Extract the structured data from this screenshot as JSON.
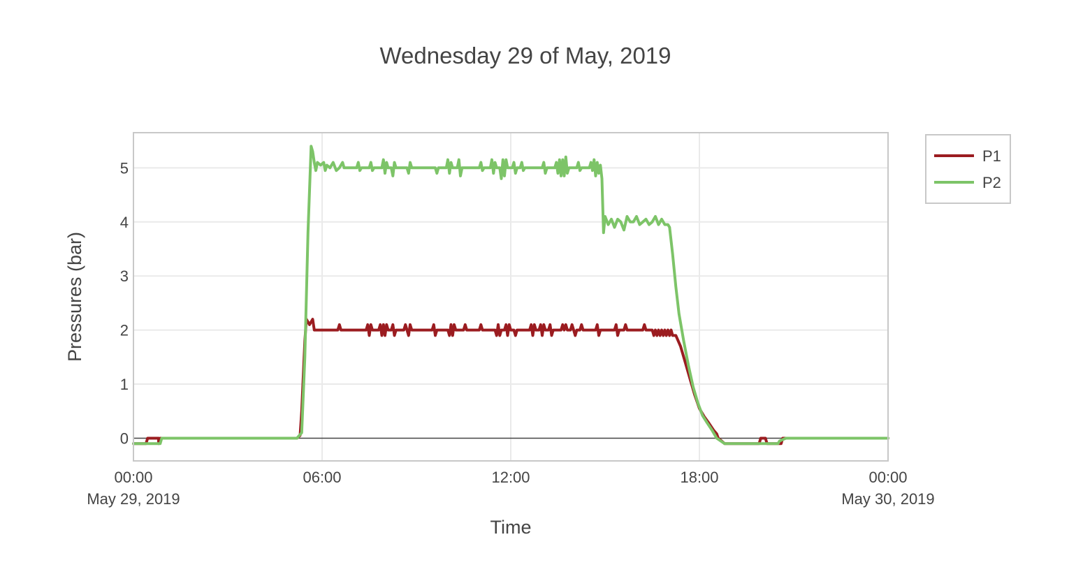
{
  "chart_data": {
    "type": "line",
    "title": "Wednesday 29 of May, 2019",
    "xlabel": "Time",
    "ylabel": "Pressures (bar)",
    "x_range_hours": [
      0,
      24
    ],
    "ylim": [
      -0.42,
      5.65
    ],
    "grid": true,
    "legend_position": "top-right",
    "x_ticks": [
      {
        "hour": 0,
        "line1": "00:00",
        "line2": "May 29, 2019"
      },
      {
        "hour": 6,
        "line1": "06:00",
        "line2": ""
      },
      {
        "hour": 12,
        "line1": "12:00",
        "line2": ""
      },
      {
        "hour": 18,
        "line1": "18:00",
        "line2": ""
      },
      {
        "hour": 24,
        "line1": "00:00",
        "line2": "May 30, 2019"
      }
    ],
    "y_ticks": [
      0,
      1,
      2,
      3,
      4,
      5
    ],
    "series": [
      {
        "name": "P1",
        "color": "#9b1c20",
        "points": [
          [
            0.0,
            -0.1
          ],
          [
            0.4,
            -0.1
          ],
          [
            0.45,
            0.0
          ],
          [
            0.8,
            0.0
          ],
          [
            0.8,
            -0.1
          ],
          [
            0.85,
            0.0
          ],
          [
            5.2,
            0.0
          ],
          [
            5.3,
            0.05
          ],
          [
            5.35,
            0.5
          ],
          [
            5.45,
            1.8
          ],
          [
            5.5,
            2.2
          ],
          [
            5.6,
            2.1
          ],
          [
            5.7,
            2.2
          ],
          [
            5.75,
            2.0
          ],
          [
            6.5,
            2.0
          ],
          [
            6.55,
            2.1
          ],
          [
            6.6,
            2.0
          ],
          [
            7.4,
            2.0
          ],
          [
            7.45,
            2.1
          ],
          [
            7.5,
            1.9
          ],
          [
            7.55,
            2.1
          ],
          [
            7.6,
            2.0
          ],
          [
            7.8,
            2.0
          ],
          [
            7.85,
            2.1
          ],
          [
            7.9,
            1.9
          ],
          [
            7.95,
            2.1
          ],
          [
            8.0,
            1.9
          ],
          [
            8.05,
            2.1
          ],
          [
            8.1,
            2.0
          ],
          [
            8.2,
            2.0
          ],
          [
            8.25,
            2.1
          ],
          [
            8.3,
            1.9
          ],
          [
            8.35,
            2.0
          ],
          [
            8.6,
            2.0
          ],
          [
            8.65,
            2.1
          ],
          [
            8.7,
            2.0
          ],
          [
            8.75,
            1.9
          ],
          [
            8.8,
            2.1
          ],
          [
            8.85,
            2.0
          ],
          [
            9.5,
            2.0
          ],
          [
            9.55,
            2.1
          ],
          [
            9.6,
            1.9
          ],
          [
            9.65,
            2.0
          ],
          [
            10.0,
            2.0
          ],
          [
            10.05,
            1.9
          ],
          [
            10.1,
            2.1
          ],
          [
            10.15,
            1.9
          ],
          [
            10.2,
            2.1
          ],
          [
            10.25,
            2.0
          ],
          [
            10.5,
            2.0
          ],
          [
            10.55,
            2.1
          ],
          [
            10.6,
            2.0
          ],
          [
            11.0,
            2.0
          ],
          [
            11.05,
            2.1
          ],
          [
            11.1,
            2.0
          ],
          [
            11.5,
            2.0
          ],
          [
            11.55,
            1.9
          ],
          [
            11.6,
            2.1
          ],
          [
            11.65,
            1.9
          ],
          [
            11.7,
            2.0
          ],
          [
            11.8,
            2.0
          ],
          [
            11.85,
            2.1
          ],
          [
            11.9,
            1.9
          ],
          [
            11.95,
            2.1
          ],
          [
            12.0,
            2.0
          ],
          [
            12.1,
            2.0
          ],
          [
            12.15,
            1.9
          ],
          [
            12.2,
            2.0
          ],
          [
            12.6,
            2.0
          ],
          [
            12.65,
            2.1
          ],
          [
            12.7,
            1.9
          ],
          [
            12.75,
            2.1
          ],
          [
            12.8,
            2.0
          ],
          [
            12.9,
            2.0
          ],
          [
            12.95,
            2.1
          ],
          [
            13.0,
            1.9
          ],
          [
            13.05,
            2.1
          ],
          [
            13.1,
            2.0
          ],
          [
            13.2,
            2.0
          ],
          [
            13.25,
            2.1
          ],
          [
            13.3,
            1.9
          ],
          [
            13.35,
            2.0
          ],
          [
            13.6,
            2.0
          ],
          [
            13.65,
            2.1
          ],
          [
            13.7,
            2.0
          ],
          [
            13.75,
            2.1
          ],
          [
            13.8,
            2.0
          ],
          [
            13.9,
            2.0
          ],
          [
            13.95,
            2.1
          ],
          [
            14.0,
            2.0
          ],
          [
            14.05,
            1.9
          ],
          [
            14.1,
            2.0
          ],
          [
            14.2,
            2.0
          ],
          [
            14.25,
            2.1
          ],
          [
            14.3,
            2.0
          ],
          [
            14.7,
            2.0
          ],
          [
            14.75,
            2.1
          ],
          [
            14.8,
            1.9
          ],
          [
            14.85,
            2.0
          ],
          [
            15.3,
            2.0
          ],
          [
            15.35,
            2.1
          ],
          [
            15.4,
            1.9
          ],
          [
            15.45,
            2.0
          ],
          [
            15.6,
            2.0
          ],
          [
            15.65,
            2.1
          ],
          [
            15.7,
            2.0
          ],
          [
            16.2,
            2.0
          ],
          [
            16.25,
            2.1
          ],
          [
            16.3,
            2.0
          ],
          [
            16.5,
            2.0
          ],
          [
            16.55,
            1.9
          ],
          [
            16.6,
            2.0
          ],
          [
            16.65,
            1.9
          ],
          [
            16.7,
            2.0
          ],
          [
            16.75,
            1.9
          ],
          [
            16.8,
            2.0
          ],
          [
            16.85,
            1.9
          ],
          [
            16.9,
            2.0
          ],
          [
            16.95,
            1.9
          ],
          [
            17.0,
            2.0
          ],
          [
            17.05,
            1.9
          ],
          [
            17.1,
            2.0
          ],
          [
            17.15,
            1.9
          ],
          [
            17.25,
            1.9
          ],
          [
            17.4,
            1.7
          ],
          [
            17.55,
            1.4
          ],
          [
            17.7,
            1.1
          ],
          [
            17.85,
            0.8
          ],
          [
            18.0,
            0.55
          ],
          [
            18.15,
            0.4
          ],
          [
            18.3,
            0.28
          ],
          [
            18.45,
            0.15
          ],
          [
            18.55,
            0.08
          ],
          [
            18.6,
            0.0
          ],
          [
            18.8,
            -0.1
          ],
          [
            19.9,
            -0.1
          ],
          [
            19.95,
            0.0
          ],
          [
            20.1,
            0.0
          ],
          [
            20.15,
            -0.1
          ],
          [
            20.6,
            -0.1
          ],
          [
            20.65,
            0.0
          ],
          [
            24.0,
            0.0
          ]
        ]
      },
      {
        "name": "P2",
        "color": "#7dc468",
        "points": [
          [
            0.0,
            -0.1
          ],
          [
            0.85,
            -0.1
          ],
          [
            0.9,
            0.0
          ],
          [
            5.2,
            0.0
          ],
          [
            5.35,
            0.1
          ],
          [
            5.45,
            1.5
          ],
          [
            5.55,
            3.8
          ],
          [
            5.65,
            5.4
          ],
          [
            5.7,
            5.3
          ],
          [
            5.75,
            5.1
          ],
          [
            5.8,
            4.95
          ],
          [
            5.85,
            5.1
          ],
          [
            5.95,
            5.05
          ],
          [
            6.05,
            5.1
          ],
          [
            6.1,
            4.95
          ],
          [
            6.15,
            5.05
          ],
          [
            6.25,
            5.0
          ],
          [
            6.35,
            5.1
          ],
          [
            6.45,
            4.95
          ],
          [
            6.55,
            5.0
          ],
          [
            6.65,
            5.1
          ],
          [
            6.7,
            5.0
          ],
          [
            7.1,
            5.0
          ],
          [
            7.15,
            5.1
          ],
          [
            7.2,
            4.95
          ],
          [
            7.25,
            5.0
          ],
          [
            7.5,
            5.0
          ],
          [
            7.55,
            5.1
          ],
          [
            7.6,
            4.95
          ],
          [
            7.65,
            5.0
          ],
          [
            7.9,
            5.0
          ],
          [
            7.95,
            5.15
          ],
          [
            8.0,
            4.9
          ],
          [
            8.05,
            5.1
          ],
          [
            8.1,
            5.0
          ],
          [
            8.2,
            5.0
          ],
          [
            8.25,
            4.85
          ],
          [
            8.3,
            5.1
          ],
          [
            8.35,
            5.0
          ],
          [
            8.7,
            5.0
          ],
          [
            8.75,
            4.9
          ],
          [
            8.8,
            5.1
          ],
          [
            8.85,
            5.0
          ],
          [
            9.6,
            5.0
          ],
          [
            9.65,
            4.9
          ],
          [
            9.7,
            5.0
          ],
          [
            9.95,
            5.0
          ],
          [
            10.0,
            5.15
          ],
          [
            10.05,
            4.9
          ],
          [
            10.1,
            5.1
          ],
          [
            10.15,
            5.0
          ],
          [
            10.3,
            5.0
          ],
          [
            10.35,
            5.15
          ],
          [
            10.4,
            4.85
          ],
          [
            10.45,
            5.0
          ],
          [
            11.0,
            5.0
          ],
          [
            11.05,
            5.1
          ],
          [
            11.1,
            4.95
          ],
          [
            11.15,
            5.0
          ],
          [
            11.35,
            5.0
          ],
          [
            11.4,
            5.15
          ],
          [
            11.45,
            4.9
          ],
          [
            11.5,
            5.1
          ],
          [
            11.55,
            5.0
          ],
          [
            11.65,
            5.0
          ],
          [
            11.7,
            4.8
          ],
          [
            11.75,
            5.15
          ],
          [
            11.8,
            4.85
          ],
          [
            11.85,
            5.15
          ],
          [
            11.9,
            5.0
          ],
          [
            12.05,
            5.0
          ],
          [
            12.1,
            5.1
          ],
          [
            12.15,
            4.9
          ],
          [
            12.2,
            5.0
          ],
          [
            12.3,
            5.0
          ],
          [
            12.35,
            5.1
          ],
          [
            12.4,
            4.95
          ],
          [
            12.45,
            5.0
          ],
          [
            13.0,
            5.0
          ],
          [
            13.05,
            5.1
          ],
          [
            13.1,
            4.9
          ],
          [
            13.15,
            5.0
          ],
          [
            13.4,
            5.0
          ],
          [
            13.45,
            5.1
          ],
          [
            13.5,
            4.9
          ],
          [
            13.55,
            5.15
          ],
          [
            13.6,
            4.85
          ],
          [
            13.65,
            5.15
          ],
          [
            13.7,
            4.85
          ],
          [
            13.75,
            5.2
          ],
          [
            13.8,
            4.9
          ],
          [
            13.85,
            5.0
          ],
          [
            14.1,
            5.0
          ],
          [
            14.15,
            5.1
          ],
          [
            14.2,
            4.95
          ],
          [
            14.25,
            5.0
          ],
          [
            14.5,
            5.0
          ],
          [
            14.55,
            5.1
          ],
          [
            14.6,
            4.95
          ],
          [
            14.65,
            5.15
          ],
          [
            14.7,
            4.85
          ],
          [
            14.75,
            5.1
          ],
          [
            14.8,
            4.9
          ],
          [
            14.85,
            5.05
          ],
          [
            14.9,
            4.8
          ],
          [
            14.95,
            3.8
          ],
          [
            15.0,
            4.1
          ],
          [
            15.1,
            3.95
          ],
          [
            15.2,
            4.05
          ],
          [
            15.3,
            3.9
          ],
          [
            15.4,
            4.05
          ],
          [
            15.5,
            4.0
          ],
          [
            15.6,
            3.85
          ],
          [
            15.7,
            4.1
          ],
          [
            15.8,
            4.0
          ],
          [
            15.9,
            4.0
          ],
          [
            16.0,
            4.1
          ],
          [
            16.1,
            3.95
          ],
          [
            16.2,
            4.0
          ],
          [
            16.3,
            4.05
          ],
          [
            16.4,
            3.95
          ],
          [
            16.5,
            4.0
          ],
          [
            16.6,
            4.1
          ],
          [
            16.7,
            3.95
          ],
          [
            16.8,
            4.05
          ],
          [
            16.9,
            3.95
          ],
          [
            17.0,
            3.95
          ],
          [
            17.05,
            3.9
          ],
          [
            17.15,
            3.4
          ],
          [
            17.25,
            2.8
          ],
          [
            17.35,
            2.3
          ],
          [
            17.5,
            1.8
          ],
          [
            17.65,
            1.35
          ],
          [
            17.8,
            0.95
          ],
          [
            17.95,
            0.65
          ],
          [
            18.1,
            0.42
          ],
          [
            18.25,
            0.28
          ],
          [
            18.4,
            0.15
          ],
          [
            18.5,
            0.05
          ],
          [
            18.55,
            0.0
          ],
          [
            18.8,
            -0.1
          ],
          [
            20.5,
            -0.1
          ],
          [
            20.55,
            -0.05
          ],
          [
            20.75,
            0.0
          ],
          [
            24.0,
            0.0
          ]
        ]
      }
    ]
  }
}
